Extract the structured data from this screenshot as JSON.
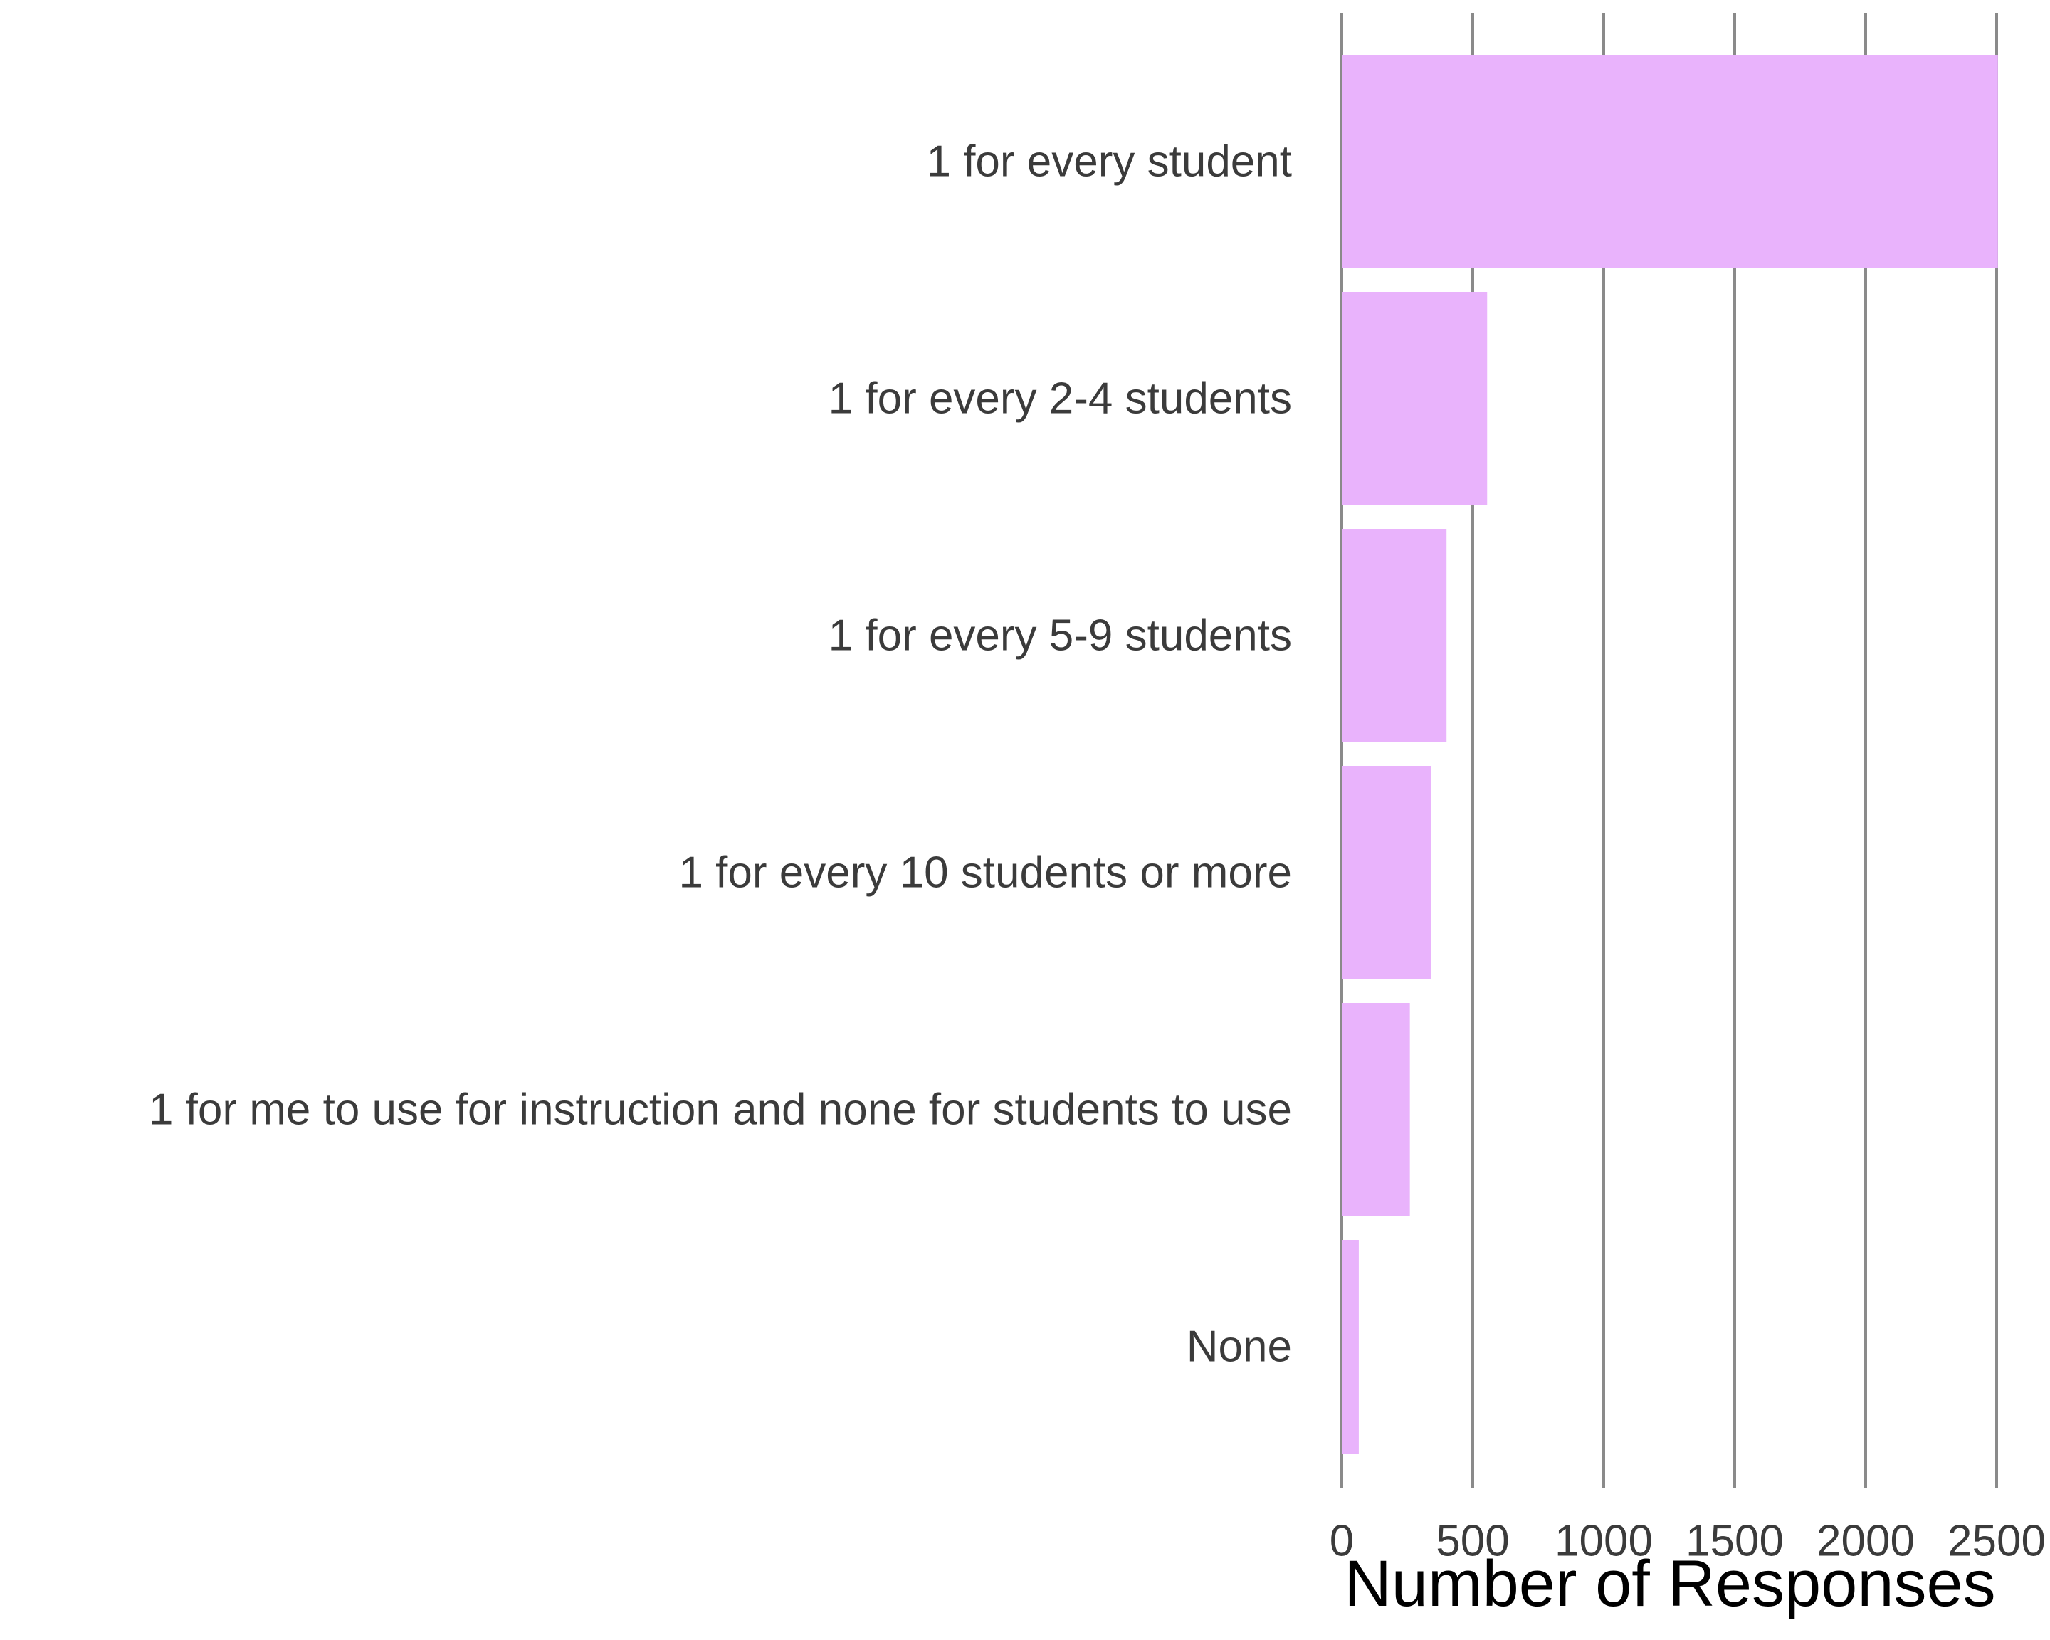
{
  "chart_data": {
    "type": "bar",
    "orientation": "horizontal",
    "categories": [
      "1 for every student",
      "1 for every 2-4 students",
      "1 for every 5-9 students",
      "1 for every 10 students or more",
      "1 for me to use for instruction and none for students to use",
      "None"
    ],
    "values": [
      2505,
      555,
      400,
      340,
      260,
      65
    ],
    "xlabel": "Number of Responses",
    "ylabel": "",
    "title": "",
    "xlim": [
      0,
      2500
    ],
    "x_ticks": [
      "0",
      "500",
      "1000",
      "1500",
      "2000",
      "2500"
    ],
    "grid": "vertical",
    "bar_color": "#e9b3fc",
    "grid_color": "#8a8a8a"
  }
}
